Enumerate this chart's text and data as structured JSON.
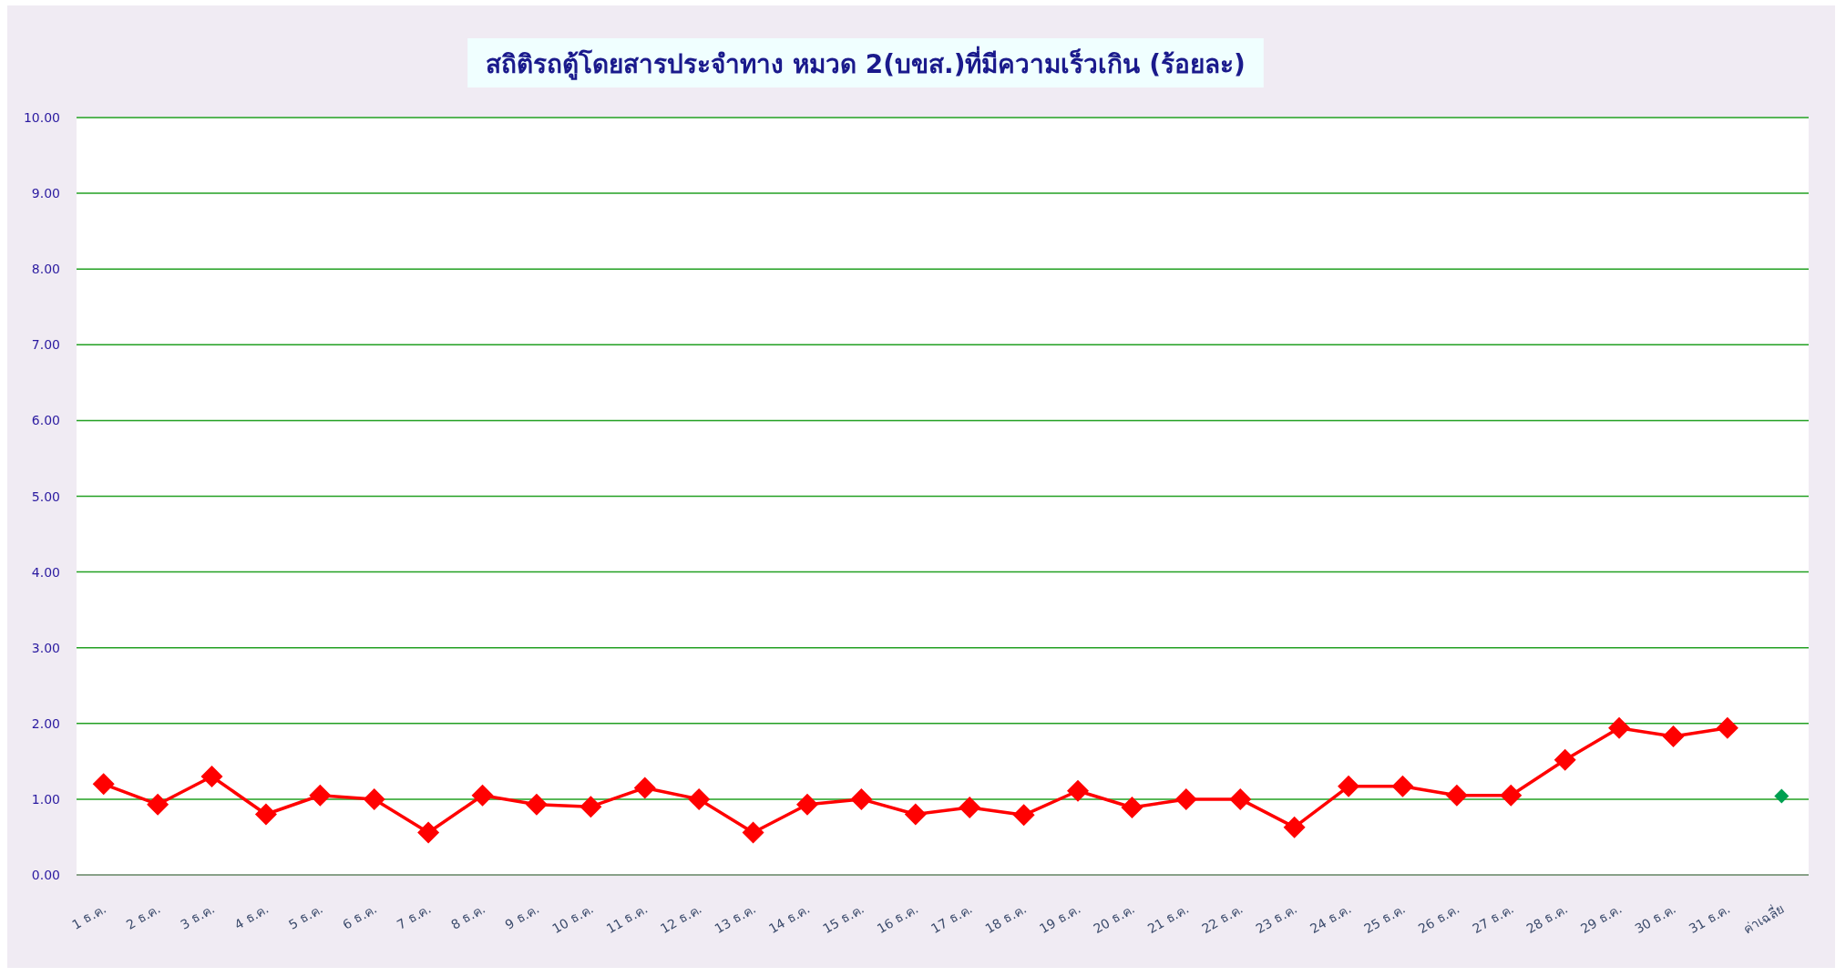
{
  "chart_data": {
    "type": "line",
    "title": "สถิติรถตู้โดยสารประจำทาง หมวด 2(บขส.)ที่มีความเร็วเกิน (ร้อยละ)",
    "categories": [
      "1 ธ.ค.",
      "2 ธ.ค.",
      "3 ธ.ค.",
      "4 ธ.ค.",
      "5 ธ.ค.",
      "6 ธ.ค.",
      "7 ธ.ค.",
      "8 ธ.ค.",
      "9 ธ.ค.",
      "10 ธ.ค.",
      "11 ธ.ค.",
      "12 ธ.ค.",
      "13 ธ.ค.",
      "14 ธ.ค.",
      "15 ธ.ค.",
      "16 ธ.ค.",
      "17 ธ.ค.",
      "18 ธ.ค.",
      "19 ธ.ค.",
      "20 ธ.ค.",
      "21 ธ.ค.",
      "22 ธ.ค.",
      "23 ธ.ค.",
      "24 ธ.ค.",
      "25 ธ.ค.",
      "26 ธ.ค.",
      "27 ธ.ค.",
      "28 ธ.ค.",
      "29 ธ.ค.",
      "30 ธ.ค.",
      "31 ธ.ค.",
      "ค่าเฉลี่ย"
    ],
    "series": [
      {
        "type": "line",
        "color": "#ff0000",
        "values": [
          1.2,
          0.93,
          1.3,
          0.8,
          1.05,
          1.0,
          0.56,
          1.05,
          0.93,
          0.9,
          1.15,
          1.0,
          0.56,
          0.93,
          1.0,
          0.8,
          0.89,
          0.79,
          1.11,
          0.89,
          1.0,
          1.0,
          0.63,
          1.17,
          1.17,
          1.05,
          1.05,
          1.52,
          1.94,
          1.83,
          1.94,
          null
        ]
      },
      {
        "type": "scatter",
        "color": "#00a050",
        "values": [
          null,
          null,
          null,
          null,
          null,
          null,
          null,
          null,
          null,
          null,
          null,
          null,
          null,
          null,
          null,
          null,
          null,
          null,
          null,
          null,
          null,
          null,
          null,
          null,
          null,
          null,
          null,
          null,
          null,
          null,
          null,
          1.04
        ]
      }
    ],
    "ylim": [
      0,
      10
    ],
    "yticks": [
      {
        "value": 0,
        "label": "0.00"
      },
      {
        "value": 1,
        "label": "1.00"
      },
      {
        "value": 2,
        "label": "2.00"
      },
      {
        "value": 3,
        "label": "3.00"
      },
      {
        "value": 4,
        "label": "4.00"
      },
      {
        "value": 5,
        "label": "5.00"
      },
      {
        "value": 6,
        "label": "6.00"
      },
      {
        "value": 7,
        "label": "7.00"
      },
      {
        "value": 8,
        "label": "8.00"
      },
      {
        "value": 9,
        "label": "9.00"
      },
      {
        "value": 10,
        "label": "10.00"
      }
    ],
    "grid": "y",
    "marker": "diamond",
    "line_style": "solid"
  }
}
